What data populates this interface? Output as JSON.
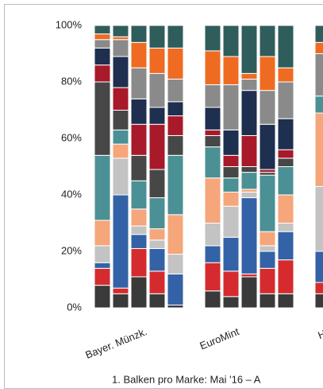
{
  "chart_data": {
    "type": "stacked_bar",
    "categories": [
      null,
      null,
      "Bayer. Münzk.",
      null,
      null,
      null,
      "EuroMint",
      null,
      null,
      null,
      "Ha"
    ],
    "series": [
      {
        "color": "#3a3a3a",
        "values": [
          8,
          5,
          11,
          5,
          1,
          6,
          4,
          11,
          5,
          5,
          5
        ]
      },
      {
        "color": "#d52b2e",
        "values": [
          6,
          2,
          10,
          8,
          0,
          10,
          9,
          1,
          9,
          12,
          4
        ]
      },
      {
        "color": "#3462a6",
        "values": [
          2,
          33,
          5,
          8,
          11,
          6,
          12,
          27,
          6,
          10,
          11
        ]
      },
      {
        "color": "#c3c3c3",
        "values": [
          6,
          13,
          3,
          3,
          7,
          8,
          11,
          2,
          2,
          3,
          23
        ]
      },
      {
        "color": "#f5a67a",
        "values": [
          9,
          5,
          6,
          4,
          14,
          16,
          5,
          1,
          5,
          10,
          26
        ]
      },
      {
        "color": "#4b9094",
        "values": [
          23,
          5,
          10,
          11,
          21,
          11,
          5,
          6,
          20,
          10,
          6
        ]
      },
      {
        "color": "#474747",
        "values": [
          26,
          7,
          9,
          10,
          7,
          4,
          4,
          2,
          1,
          3,
          0
        ]
      },
      {
        "color": "#a8192a",
        "values": [
          6,
          8,
          11,
          16,
          7,
          2,
          4,
          11,
          1,
          3,
          0
        ]
      },
      {
        "color": "#1e2f4f",
        "values": [
          6,
          11,
          9,
          6,
          5,
          8,
          9,
          16,
          16,
          11,
          0
        ]
      },
      {
        "color": "#8a8a8a",
        "values": [
          3,
          6,
          11,
          12,
          8,
          8,
          16,
          4,
          12,
          13,
          15
        ]
      },
      {
        "color": "#ef6b21",
        "values": [
          2,
          1,
          9,
          9,
          11,
          12,
          10,
          2,
          12,
          5,
          4
        ]
      },
      {
        "color": "#2f5d5c",
        "values": [
          3,
          4,
          6,
          8,
          8,
          9,
          11,
          17,
          11,
          15,
          6
        ]
      }
    ],
    "ylim": [
      0,
      100
    ],
    "yticks": [
      {
        "value": 0,
        "label": "0%"
      },
      {
        "value": 20,
        "label": "20%"
      },
      {
        "value": 40,
        "label": "40%"
      },
      {
        "value": 60,
        "label": "60%"
      },
      {
        "value": 80,
        "label": "80%"
      },
      {
        "value": 100,
        "label": "100%"
      }
    ],
    "footnote": "1. Balken pro Marke: Mai '16 – A"
  }
}
